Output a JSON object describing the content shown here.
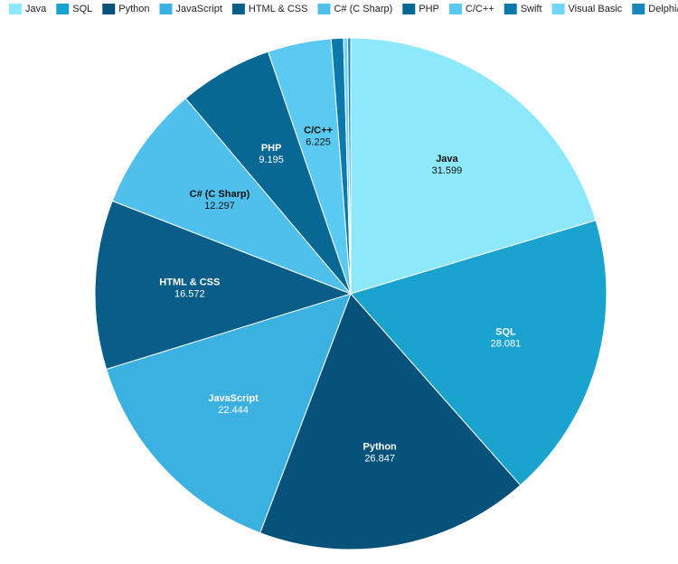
{
  "chart_data": {
    "type": "pie",
    "categories": [
      "Java",
      "SQL",
      "Python",
      "JavaScript",
      "HTML & CSS",
      "C# (C Sharp)",
      "PHP",
      "C/C++",
      "Swift",
      "Visual Basic",
      "Delphi/Object Pascal"
    ],
    "values": [
      31.599,
      28.081,
      26.847,
      22.444,
      16.572,
      12.297,
      9.195,
      6.225,
      1.2,
      0.4,
      0.3
    ],
    "colors": [
      "#8ee8fc",
      "#1ba3cf",
      "#07527a",
      "#3bb1e1",
      "#085e89",
      "#4fc0eb",
      "#076894",
      "#5bcaf3",
      "#0b7aab",
      "#70d5f6",
      "#1787b9"
    ],
    "legend": "top"
  }
}
